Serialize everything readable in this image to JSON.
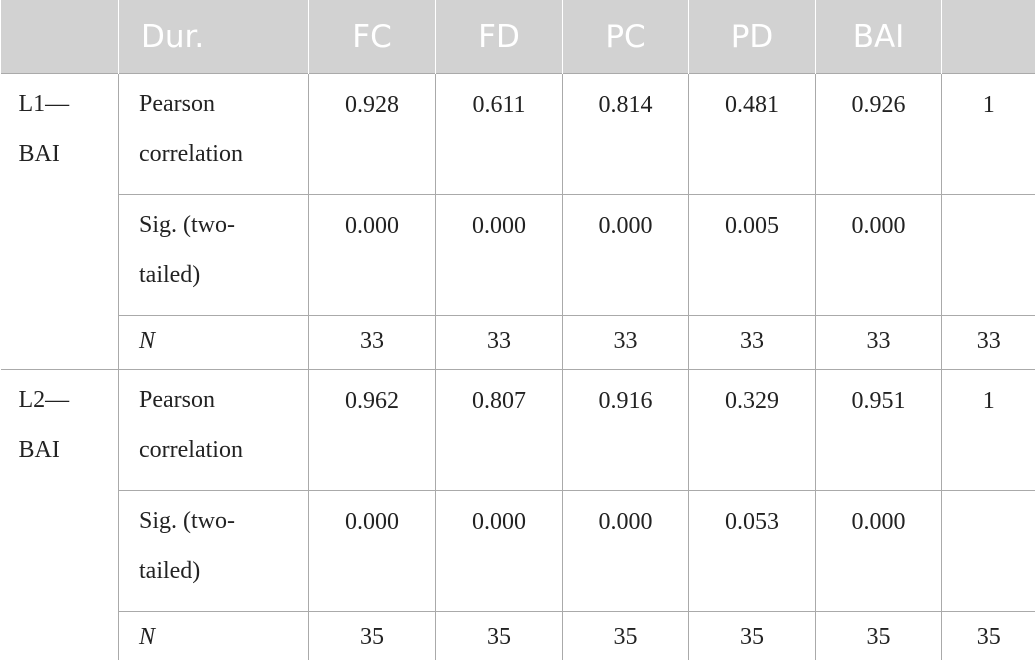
{
  "table": {
    "columns": [
      null,
      "Dur.",
      "FC",
      "FD",
      "PC",
      "PD",
      "BAI",
      null
    ],
    "groups": [
      {
        "label": "L1—BAI",
        "rows": [
          {
            "label": "Pearson correlation",
            "values": [
              "0.928",
              "0.611",
              "0.814",
              "0.481",
              "0.926",
              "1"
            ]
          },
          {
            "label": "Sig. (two-tailed)",
            "values": [
              "0.000",
              "0.000",
              "0.000",
              "0.005",
              "0.000",
              null
            ]
          },
          {
            "label": "N",
            "values": [
              "33",
              "33",
              "33",
              "33",
              "33",
              "33"
            ]
          }
        ]
      },
      {
        "label": "L2—BAI",
        "rows": [
          {
            "label": "Pearson correlation",
            "values": [
              "0.962",
              "0.807",
              "0.916",
              "0.329",
              "0.951",
              "1"
            ]
          },
          {
            "label": "Sig. (two-tailed)",
            "values": [
              "0.000",
              "0.000",
              "0.000",
              "0.053",
              "0.000",
              null
            ]
          },
          {
            "label": "N",
            "values": [
              "35",
              "35",
              "35",
              "35",
              "35",
              "35"
            ]
          }
        ]
      }
    ]
  }
}
